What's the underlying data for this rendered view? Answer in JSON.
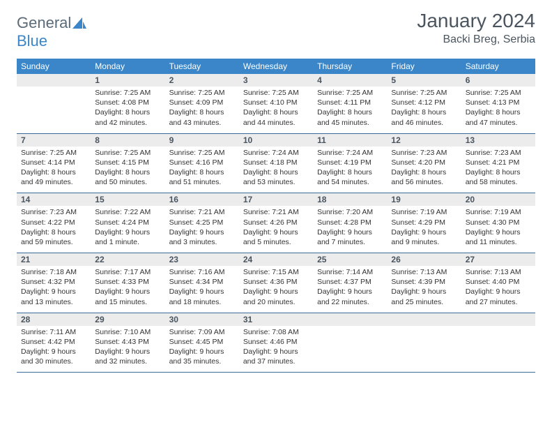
{
  "brand": {
    "part1": "General",
    "part2": "Blue"
  },
  "title": "January 2024",
  "location": "Backi Breg, Serbia",
  "dow": [
    "Sunday",
    "Monday",
    "Tuesday",
    "Wednesday",
    "Thursday",
    "Friday",
    "Saturday"
  ],
  "colors": {
    "header_bg": "#3a86c8",
    "header_fg": "#ffffff",
    "daynum_bg": "#ececec",
    "rule": "#3a6a9a",
    "text": "#4a5560"
  },
  "weeks": [
    [
      {
        "n": "",
        "sr": "",
        "ss": "",
        "dl": ""
      },
      {
        "n": "1",
        "sr": "Sunrise: 7:25 AM",
        "ss": "Sunset: 4:08 PM",
        "dl": "Daylight: 8 hours and 42 minutes."
      },
      {
        "n": "2",
        "sr": "Sunrise: 7:25 AM",
        "ss": "Sunset: 4:09 PM",
        "dl": "Daylight: 8 hours and 43 minutes."
      },
      {
        "n": "3",
        "sr": "Sunrise: 7:25 AM",
        "ss": "Sunset: 4:10 PM",
        "dl": "Daylight: 8 hours and 44 minutes."
      },
      {
        "n": "4",
        "sr": "Sunrise: 7:25 AM",
        "ss": "Sunset: 4:11 PM",
        "dl": "Daylight: 8 hours and 45 minutes."
      },
      {
        "n": "5",
        "sr": "Sunrise: 7:25 AM",
        "ss": "Sunset: 4:12 PM",
        "dl": "Daylight: 8 hours and 46 minutes."
      },
      {
        "n": "6",
        "sr": "Sunrise: 7:25 AM",
        "ss": "Sunset: 4:13 PM",
        "dl": "Daylight: 8 hours and 47 minutes."
      }
    ],
    [
      {
        "n": "7",
        "sr": "Sunrise: 7:25 AM",
        "ss": "Sunset: 4:14 PM",
        "dl": "Daylight: 8 hours and 49 minutes."
      },
      {
        "n": "8",
        "sr": "Sunrise: 7:25 AM",
        "ss": "Sunset: 4:15 PM",
        "dl": "Daylight: 8 hours and 50 minutes."
      },
      {
        "n": "9",
        "sr": "Sunrise: 7:25 AM",
        "ss": "Sunset: 4:16 PM",
        "dl": "Daylight: 8 hours and 51 minutes."
      },
      {
        "n": "10",
        "sr": "Sunrise: 7:24 AM",
        "ss": "Sunset: 4:18 PM",
        "dl": "Daylight: 8 hours and 53 minutes."
      },
      {
        "n": "11",
        "sr": "Sunrise: 7:24 AM",
        "ss": "Sunset: 4:19 PM",
        "dl": "Daylight: 8 hours and 54 minutes."
      },
      {
        "n": "12",
        "sr": "Sunrise: 7:23 AM",
        "ss": "Sunset: 4:20 PM",
        "dl": "Daylight: 8 hours and 56 minutes."
      },
      {
        "n": "13",
        "sr": "Sunrise: 7:23 AM",
        "ss": "Sunset: 4:21 PM",
        "dl": "Daylight: 8 hours and 58 minutes."
      }
    ],
    [
      {
        "n": "14",
        "sr": "Sunrise: 7:23 AM",
        "ss": "Sunset: 4:22 PM",
        "dl": "Daylight: 8 hours and 59 minutes."
      },
      {
        "n": "15",
        "sr": "Sunrise: 7:22 AM",
        "ss": "Sunset: 4:24 PM",
        "dl": "Daylight: 9 hours and 1 minute."
      },
      {
        "n": "16",
        "sr": "Sunrise: 7:21 AM",
        "ss": "Sunset: 4:25 PM",
        "dl": "Daylight: 9 hours and 3 minutes."
      },
      {
        "n": "17",
        "sr": "Sunrise: 7:21 AM",
        "ss": "Sunset: 4:26 PM",
        "dl": "Daylight: 9 hours and 5 minutes."
      },
      {
        "n": "18",
        "sr": "Sunrise: 7:20 AM",
        "ss": "Sunset: 4:28 PM",
        "dl": "Daylight: 9 hours and 7 minutes."
      },
      {
        "n": "19",
        "sr": "Sunrise: 7:19 AM",
        "ss": "Sunset: 4:29 PM",
        "dl": "Daylight: 9 hours and 9 minutes."
      },
      {
        "n": "20",
        "sr": "Sunrise: 7:19 AM",
        "ss": "Sunset: 4:30 PM",
        "dl": "Daylight: 9 hours and 11 minutes."
      }
    ],
    [
      {
        "n": "21",
        "sr": "Sunrise: 7:18 AM",
        "ss": "Sunset: 4:32 PM",
        "dl": "Daylight: 9 hours and 13 minutes."
      },
      {
        "n": "22",
        "sr": "Sunrise: 7:17 AM",
        "ss": "Sunset: 4:33 PM",
        "dl": "Daylight: 9 hours and 15 minutes."
      },
      {
        "n": "23",
        "sr": "Sunrise: 7:16 AM",
        "ss": "Sunset: 4:34 PM",
        "dl": "Daylight: 9 hours and 18 minutes."
      },
      {
        "n": "24",
        "sr": "Sunrise: 7:15 AM",
        "ss": "Sunset: 4:36 PM",
        "dl": "Daylight: 9 hours and 20 minutes."
      },
      {
        "n": "25",
        "sr": "Sunrise: 7:14 AM",
        "ss": "Sunset: 4:37 PM",
        "dl": "Daylight: 9 hours and 22 minutes."
      },
      {
        "n": "26",
        "sr": "Sunrise: 7:13 AM",
        "ss": "Sunset: 4:39 PM",
        "dl": "Daylight: 9 hours and 25 minutes."
      },
      {
        "n": "27",
        "sr": "Sunrise: 7:13 AM",
        "ss": "Sunset: 4:40 PM",
        "dl": "Daylight: 9 hours and 27 minutes."
      }
    ],
    [
      {
        "n": "28",
        "sr": "Sunrise: 7:11 AM",
        "ss": "Sunset: 4:42 PM",
        "dl": "Daylight: 9 hours and 30 minutes."
      },
      {
        "n": "29",
        "sr": "Sunrise: 7:10 AM",
        "ss": "Sunset: 4:43 PM",
        "dl": "Daylight: 9 hours and 32 minutes."
      },
      {
        "n": "30",
        "sr": "Sunrise: 7:09 AM",
        "ss": "Sunset: 4:45 PM",
        "dl": "Daylight: 9 hours and 35 minutes."
      },
      {
        "n": "31",
        "sr": "Sunrise: 7:08 AM",
        "ss": "Sunset: 4:46 PM",
        "dl": "Daylight: 9 hours and 37 minutes."
      },
      {
        "n": "",
        "sr": "",
        "ss": "",
        "dl": ""
      },
      {
        "n": "",
        "sr": "",
        "ss": "",
        "dl": ""
      },
      {
        "n": "",
        "sr": "",
        "ss": "",
        "dl": ""
      }
    ]
  ]
}
